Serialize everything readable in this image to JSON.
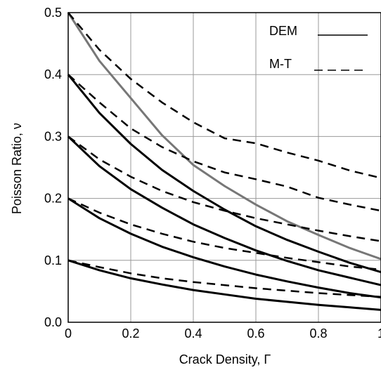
{
  "chart_data": {
    "type": "line",
    "xlabel": "Crack Density, Γ",
    "ylabel": "Poisson Ratio, ν",
    "xlim": [
      0,
      1
    ],
    "ylim": [
      0,
      0.5
    ],
    "x_ticks": [
      "0",
      "0.2",
      "0.4",
      "0.6",
      "0.8",
      "1"
    ],
    "y_ticks": [
      "0.0",
      "0.1",
      "0.2",
      "0.3",
      "0.4",
      "0.5"
    ],
    "grid": true,
    "legend": {
      "placement": "top-right",
      "entries": [
        {
          "label": "DEM",
          "style": "solid"
        },
        {
          "label": "M-T",
          "style": "dashed"
        }
      ]
    },
    "x": [
      0,
      0.1,
      0.2,
      0.3,
      0.4,
      0.5,
      0.6,
      0.7,
      0.8,
      0.9,
      1.0
    ],
    "series": [
      {
        "group": "DEM",
        "style": "solid",
        "color": "#777777",
        "values": [
          0.5,
          0.422,
          0.362,
          0.302,
          0.254,
          0.22,
          0.19,
          0.163,
          0.141,
          0.12,
          0.102
        ]
      },
      {
        "group": "DEM",
        "style": "solid",
        "color": "#000000",
        "values": [
          0.4,
          0.338,
          0.288,
          0.246,
          0.212,
          0.182,
          0.155,
          0.133,
          0.114,
          0.096,
          0.081
        ]
      },
      {
        "group": "DEM",
        "style": "solid",
        "color": "#000000",
        "values": [
          0.3,
          0.252,
          0.215,
          0.185,
          0.158,
          0.136,
          0.116,
          0.099,
          0.084,
          0.072,
          0.06
        ]
      },
      {
        "group": "DEM",
        "style": "solid",
        "color": "#000000",
        "values": [
          0.2,
          0.168,
          0.143,
          0.122,
          0.105,
          0.09,
          0.077,
          0.066,
          0.056,
          0.047,
          0.04
        ]
      },
      {
        "group": "DEM",
        "style": "solid",
        "color": "#000000",
        "values": [
          0.1,
          0.084,
          0.071,
          0.061,
          0.052,
          0.045,
          0.038,
          0.033,
          0.028,
          0.024,
          0.02
        ]
      },
      {
        "group": "M-T",
        "style": "dashed",
        "color": "#000000",
        "values": [
          0.5,
          0.44,
          0.393,
          0.355,
          0.323,
          0.297,
          0.289,
          0.274,
          0.261,
          0.245,
          0.233
        ]
      },
      {
        "group": "M-T",
        "style": "dashed",
        "color": "#000000",
        "values": [
          0.4,
          0.355,
          0.313,
          0.283,
          0.26,
          0.242,
          0.231,
          0.219,
          0.201,
          0.19,
          0.18
        ]
      },
      {
        "group": "M-T",
        "style": "dashed",
        "color": "#000000",
        "values": [
          0.3,
          0.263,
          0.235,
          0.212,
          0.194,
          0.18,
          0.168,
          0.158,
          0.148,
          0.139,
          0.131
        ]
      },
      {
        "group": "M-T",
        "style": "dashed",
        "color": "#000000",
        "values": [
          0.2,
          0.177,
          0.158,
          0.143,
          0.13,
          0.12,
          0.112,
          0.104,
          0.097,
          0.09,
          0.085
        ]
      },
      {
        "group": "M-T",
        "style": "dashed",
        "color": "#000000",
        "values": [
          0.1,
          0.089,
          0.079,
          0.071,
          0.065,
          0.06,
          0.055,
          0.051,
          0.047,
          0.044,
          0.041
        ]
      }
    ]
  }
}
